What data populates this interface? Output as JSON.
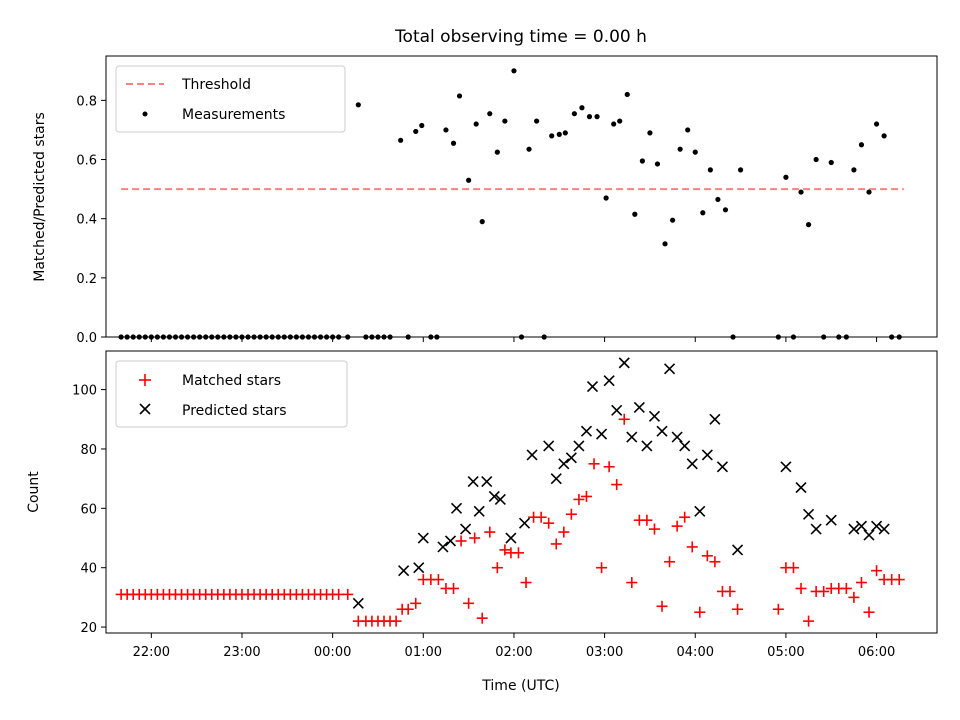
{
  "chart_data": [
    {
      "type": "scatter",
      "title": "Total observing time = 0.00 h",
      "ylabel": "Matched/Predicted stars",
      "xlim": [
        "21:30",
        "06:40"
      ],
      "ylim": [
        0,
        0.95
      ],
      "yticks": [
        "0.0",
        "0.2",
        "0.4",
        "0.6",
        "0.8"
      ],
      "legend_position": "top-left",
      "threshold": {
        "name": "Threshold",
        "value": 0.5,
        "x_start": "21:40",
        "x_end": "06:18",
        "color": "#ff8080"
      },
      "series": [
        {
          "name": "Measurements",
          "color": "#000000",
          "points": [
            [
              "21:40",
              0
            ],
            [
              "21:44",
              0
            ],
            [
              "21:48",
              0
            ],
            [
              "21:52",
              0
            ],
            [
              "21:56",
              0
            ],
            [
              "22:00",
              0
            ],
            [
              "22:04",
              0
            ],
            [
              "22:08",
              0
            ],
            [
              "22:12",
              0
            ],
            [
              "22:16",
              0
            ],
            [
              "22:20",
              0
            ],
            [
              "22:24",
              0
            ],
            [
              "22:28",
              0
            ],
            [
              "22:32",
              0
            ],
            [
              "22:36",
              0
            ],
            [
              "22:40",
              0
            ],
            [
              "22:44",
              0
            ],
            [
              "22:48",
              0
            ],
            [
              "22:52",
              0
            ],
            [
              "22:56",
              0
            ],
            [
              "23:00",
              0
            ],
            [
              "23:04",
              0
            ],
            [
              "23:08",
              0
            ],
            [
              "23:12",
              0
            ],
            [
              "23:16",
              0
            ],
            [
              "23:20",
              0
            ],
            [
              "23:24",
              0
            ],
            [
              "23:28",
              0
            ],
            [
              "23:32",
              0
            ],
            [
              "23:36",
              0
            ],
            [
              "23:40",
              0
            ],
            [
              "23:44",
              0
            ],
            [
              "23:48",
              0
            ],
            [
              "23:52",
              0
            ],
            [
              "23:56",
              0
            ],
            [
              "00:00",
              0
            ],
            [
              "00:04",
              0
            ],
            [
              "00:10",
              0
            ],
            [
              "00:17",
              0.785
            ],
            [
              "00:22",
              0
            ],
            [
              "00:26",
              0
            ],
            [
              "00:30",
              0
            ],
            [
              "00:34",
              0
            ],
            [
              "00:38",
              0
            ],
            [
              "00:45",
              0.665
            ],
            [
              "00:50",
              0
            ],
            [
              "00:55",
              0.695
            ],
            [
              "00:59",
              0.715
            ],
            [
              "01:05",
              0
            ],
            [
              "01:09",
              0
            ],
            [
              "01:15",
              0.7
            ],
            [
              "01:20",
              0.655
            ],
            [
              "01:24",
              0.815
            ],
            [
              "01:30",
              0.53
            ],
            [
              "01:35",
              0.72
            ],
            [
              "01:39",
              0.39
            ],
            [
              "01:44",
              0.755
            ],
            [
              "01:49",
              0.625
            ],
            [
              "01:54",
              0.73
            ],
            [
              "02:00",
              0.9
            ],
            [
              "02:05",
              0
            ],
            [
              "02:10",
              0.635
            ],
            [
              "02:15",
              0.73
            ],
            [
              "02:20",
              0
            ],
            [
              "02:25",
              0.68
            ],
            [
              "02:30",
              0.685
            ],
            [
              "02:34",
              0.69
            ],
            [
              "02:40",
              0.755
            ],
            [
              "02:45",
              0.775
            ],
            [
              "02:50",
              0.745
            ],
            [
              "02:55",
              0.745
            ],
            [
              "03:01",
              0.47
            ],
            [
              "03:06",
              0.72
            ],
            [
              "03:10",
              0.73
            ],
            [
              "03:15",
              0.82
            ],
            [
              "03:20",
              0.415
            ],
            [
              "03:25",
              0.595
            ],
            [
              "03:30",
              0.69
            ],
            [
              "03:35",
              0.585
            ],
            [
              "03:40",
              0.315
            ],
            [
              "03:45",
              0.395
            ],
            [
              "03:50",
              0.635
            ],
            [
              "03:55",
              0.7
            ],
            [
              "04:00",
              0.625
            ],
            [
              "04:05",
              0.42
            ],
            [
              "04:10",
              0.565
            ],
            [
              "04:15",
              0.465
            ],
            [
              "04:20",
              0.43
            ],
            [
              "04:25",
              0
            ],
            [
              "04:30",
              0.565
            ],
            [
              "04:55",
              0
            ],
            [
              "05:00",
              0.54
            ],
            [
              "05:05",
              0
            ],
            [
              "05:10",
              0.49
            ],
            [
              "05:15",
              0.38
            ],
            [
              "05:20",
              0.6
            ],
            [
              "05:25",
              0
            ],
            [
              "05:30",
              0.59
            ],
            [
              "05:35",
              0
            ],
            [
              "05:40",
              0
            ],
            [
              "05:45",
              0.565
            ],
            [
              "05:50",
              0.65
            ],
            [
              "05:55",
              0.49
            ],
            [
              "06:00",
              0.72
            ],
            [
              "06:05",
              0.68
            ],
            [
              "06:10",
              0
            ],
            [
              "06:15",
              0
            ]
          ]
        }
      ]
    },
    {
      "type": "scatter",
      "xlabel": "Time (UTC)",
      "ylabel": "Count",
      "xlim": [
        "21:30",
        "06:40"
      ],
      "ylim": [
        18,
        113
      ],
      "xticks": [
        "22:00",
        "23:00",
        "00:00",
        "01:00",
        "02:00",
        "03:00",
        "04:00",
        "05:00",
        "06:00"
      ],
      "yticks": [
        "20",
        "40",
        "60",
        "80",
        "100"
      ],
      "legend_position": "top-left",
      "series": [
        {
          "name": "Matched stars",
          "color": "#ff0000",
          "points": [
            [
              "21:40",
              31
            ],
            [
              "21:44",
              31
            ],
            [
              "21:48",
              31
            ],
            [
              "21:52",
              31
            ],
            [
              "21:56",
              31
            ],
            [
              "22:00",
              31
            ],
            [
              "22:04",
              31
            ],
            [
              "22:08",
              31
            ],
            [
              "22:12",
              31
            ],
            [
              "22:16",
              31
            ],
            [
              "22:20",
              31
            ],
            [
              "22:24",
              31
            ],
            [
              "22:28",
              31
            ],
            [
              "22:32",
              31
            ],
            [
              "22:36",
              31
            ],
            [
              "22:40",
              31
            ],
            [
              "22:44",
              31
            ],
            [
              "22:48",
              31
            ],
            [
              "22:52",
              31
            ],
            [
              "22:56",
              31
            ],
            [
              "23:00",
              31
            ],
            [
              "23:04",
              31
            ],
            [
              "23:08",
              31
            ],
            [
              "23:12",
              31
            ],
            [
              "23:16",
              31
            ],
            [
              "23:20",
              31
            ],
            [
              "23:24",
              31
            ],
            [
              "23:28",
              31
            ],
            [
              "23:32",
              31
            ],
            [
              "23:36",
              31
            ],
            [
              "23:40",
              31
            ],
            [
              "23:44",
              31
            ],
            [
              "23:48",
              31
            ],
            [
              "23:52",
              31
            ],
            [
              "23:56",
              31
            ],
            [
              "00:00",
              31
            ],
            [
              "00:04",
              31
            ],
            [
              "00:10",
              31
            ],
            [
              "00:17",
              22
            ],
            [
              "00:22",
              22
            ],
            [
              "00:26",
              22
            ],
            [
              "00:30",
              22
            ],
            [
              "00:34",
              22
            ],
            [
              "00:38",
              22
            ],
            [
              "00:42",
              22
            ],
            [
              "00:46",
              26
            ],
            [
              "00:50",
              26
            ],
            [
              "00:55",
              28
            ],
            [
              "01:00",
              36
            ],
            [
              "01:05",
              36
            ],
            [
              "01:10",
              36
            ],
            [
              "01:15",
              33
            ],
            [
              "01:20",
              33
            ],
            [
              "01:25",
              49
            ],
            [
              "01:30",
              28
            ],
            [
              "01:34",
              50
            ],
            [
              "01:39",
              23
            ],
            [
              "01:44",
              52
            ],
            [
              "01:49",
              40
            ],
            [
              "01:54",
              46
            ],
            [
              "01:58",
              45
            ],
            [
              "02:03",
              45
            ],
            [
              "02:08",
              35
            ],
            [
              "02:13",
              57
            ],
            [
              "02:18",
              57
            ],
            [
              "02:23",
              55
            ],
            [
              "02:28",
              48
            ],
            [
              "02:33",
              52
            ],
            [
              "02:38",
              58
            ],
            [
              "02:43",
              63
            ],
            [
              "02:48",
              64
            ],
            [
              "02:53",
              75
            ],
            [
              "02:58",
              40
            ],
            [
              "03:03",
              74
            ],
            [
              "03:08",
              68
            ],
            [
              "03:13",
              90
            ],
            [
              "03:18",
              35
            ],
            [
              "03:23",
              56
            ],
            [
              "03:28",
              56
            ],
            [
              "03:33",
              53
            ],
            [
              "03:38",
              27
            ],
            [
              "03:43",
              42
            ],
            [
              "03:48",
              54
            ],
            [
              "03:53",
              57
            ],
            [
              "03:58",
              47
            ],
            [
              "04:03",
              25
            ],
            [
              "04:08",
              44
            ],
            [
              "04:13",
              42
            ],
            [
              "04:18",
              32
            ],
            [
              "04:23",
              32
            ],
            [
              "04:28",
              26
            ],
            [
              "04:55",
              26
            ],
            [
              "05:00",
              40
            ],
            [
              "05:05",
              40
            ],
            [
              "05:10",
              33
            ],
            [
              "05:15",
              22
            ],
            [
              "05:20",
              32
            ],
            [
              "05:25",
              32
            ],
            [
              "05:30",
              33
            ],
            [
              "05:35",
              33
            ],
            [
              "05:40",
              33
            ],
            [
              "05:45",
              30
            ],
            [
              "05:50",
              35
            ],
            [
              "05:55",
              25
            ],
            [
              "06:00",
              39
            ],
            [
              "06:05",
              36
            ],
            [
              "06:10",
              36
            ],
            [
              "06:15",
              36
            ]
          ]
        },
        {
          "name": "Predicted stars",
          "color": "#000000",
          "points": [
            [
              "00:17",
              28
            ],
            [
              "00:47",
              39
            ],
            [
              "00:57",
              40
            ],
            [
              "01:00",
              50
            ],
            [
              "01:13",
              47
            ],
            [
              "01:18",
              49
            ],
            [
              "01:22",
              60
            ],
            [
              "01:28",
              53
            ],
            [
              "01:33",
              69
            ],
            [
              "01:37",
              59
            ],
            [
              "01:42",
              69
            ],
            [
              "01:47",
              64
            ],
            [
              "01:51",
              63
            ],
            [
              "01:58",
              50
            ],
            [
              "02:07",
              55
            ],
            [
              "02:12",
              78
            ],
            [
              "02:23",
              81
            ],
            [
              "02:28",
              70
            ],
            [
              "02:33",
              75
            ],
            [
              "02:38",
              77
            ],
            [
              "02:43",
              81
            ],
            [
              "02:48",
              86
            ],
            [
              "02:52",
              101
            ],
            [
              "02:58",
              85
            ],
            [
              "03:03",
              103
            ],
            [
              "03:08",
              93
            ],
            [
              "03:13",
              109
            ],
            [
              "03:18",
              84
            ],
            [
              "03:23",
              94
            ],
            [
              "03:28",
              81
            ],
            [
              "03:33",
              91
            ],
            [
              "03:38",
              86
            ],
            [
              "03:43",
              107
            ],
            [
              "03:48",
              84
            ],
            [
              "03:53",
              81
            ],
            [
              "03:58",
              75
            ],
            [
              "04:03",
              59
            ],
            [
              "04:08",
              78
            ],
            [
              "04:13",
              90
            ],
            [
              "04:18",
              74
            ],
            [
              "04:28",
              46
            ],
            [
              "05:00",
              74
            ],
            [
              "05:10",
              67
            ],
            [
              "05:15",
              58
            ],
            [
              "05:20",
              53
            ],
            [
              "05:30",
              56
            ],
            [
              "05:45",
              53
            ],
            [
              "05:50",
              54
            ],
            [
              "05:55",
              51
            ],
            [
              "06:00",
              54
            ],
            [
              "06:05",
              53
            ]
          ]
        }
      ]
    }
  ]
}
